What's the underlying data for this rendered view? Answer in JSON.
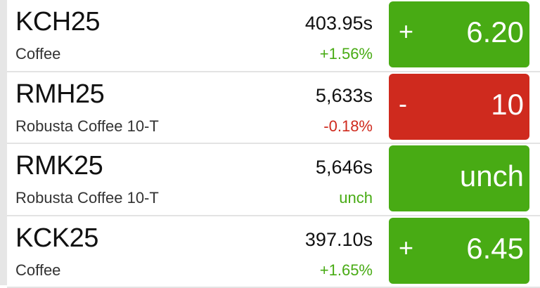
{
  "colors": {
    "up": "#48ab14",
    "down": "#cf2a1e",
    "unch": "#48ab14"
  },
  "rows": [
    {
      "symbol": "KCH25",
      "name": "Coffee",
      "price": "403.95s",
      "pct": "+1.56%",
      "sign": "+",
      "change": "6.20",
      "dir": "up"
    },
    {
      "symbol": "RMH25",
      "name": "Robusta Coffee 10-T",
      "price": "5,633s",
      "pct": "-0.18%",
      "sign": "-",
      "change": "10",
      "dir": "down"
    },
    {
      "symbol": "RMK25",
      "name": "Robusta Coffee 10-T",
      "price": "5,646s",
      "pct": "unch",
      "sign": "",
      "change": "unch",
      "dir": "unch"
    },
    {
      "symbol": "KCK25",
      "name": "Coffee",
      "price": "397.10s",
      "pct": "+1.65%",
      "sign": "+",
      "change": "6.45",
      "dir": "up"
    }
  ]
}
